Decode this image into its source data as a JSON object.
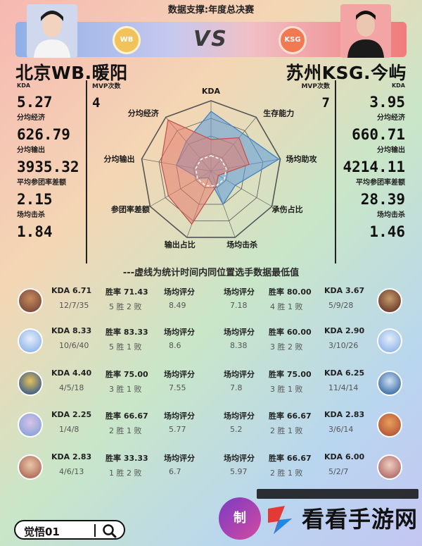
{
  "header": {
    "title": "数据支撑:年度总决赛",
    "vs": "VS"
  },
  "teams": {
    "left": {
      "name": "北京WB.暖阳",
      "logo_text": "WB",
      "color": "#e57a6e"
    },
    "right": {
      "name": "苏州KSG.今屿",
      "logo_text": "KSG",
      "color": "#5b9bdc"
    }
  },
  "left_stats": [
    {
      "label": "KDA",
      "value": "5.27"
    },
    {
      "label": "分均经济",
      "value": "626.79"
    },
    {
      "label": "分均输出",
      "value": "3935.32"
    },
    {
      "label": "平均参团率差额",
      "value": "2.15"
    },
    {
      "label": "场均击杀",
      "value": "1.84"
    }
  ],
  "right_stats": [
    {
      "label": "KDA",
      "value": "3.95"
    },
    {
      "label": "分均经济",
      "value": "660.71"
    },
    {
      "label": "分均输出",
      "value": "4214.11"
    },
    {
      "label": "平均参团率差额",
      "value": "28.39"
    },
    {
      "label": "场均击杀",
      "value": "1.46"
    }
  ],
  "mvp": {
    "left": {
      "label": "MVP次数",
      "value": "4"
    },
    "right": {
      "label": "MVP次数",
      "value": "7"
    }
  },
  "radar": {
    "axes": [
      "KDA",
      "生存能力",
      "场均助攻",
      "承伤占比",
      "场均击杀",
      "输出占比",
      "参团率差额",
      "分均输出",
      "分均经济"
    ],
    "left_values": [
      0.45,
      0.62,
      0.55,
      0.12,
      0.22,
      0.8,
      0.7,
      0.72,
      0.95
    ],
    "right_values": [
      0.85,
      0.7,
      0.98,
      0.4,
      0.5,
      0.1,
      0.2,
      0.5,
      0.55
    ],
    "min_ring": 0.22
  },
  "note": "---虚线为统计时间内同位置选手数据最低值",
  "matchups": [
    {
      "left": {
        "kda": "KDA 6.71",
        "kda_detail": "12/7/35",
        "winrate": "胜率 71.43",
        "record": "5 胜 2 败",
        "score_label": "场均评分",
        "score": "8.49"
      },
      "right": {
        "kda": "KDA 3.67",
        "kda_detail": "5/9/28",
        "winrate": "胜率 80.00",
        "record": "4 胜 1 败",
        "score_label": "场均评分",
        "score": "7.18"
      }
    },
    {
      "left": {
        "kda": "KDA 8.33",
        "kda_detail": "10/6/40",
        "winrate": "胜率 83.33",
        "record": "5 胜 1 败",
        "score_label": "场均评分",
        "score": "8.6"
      },
      "right": {
        "kda": "KDA 2.90",
        "kda_detail": "3/10/26",
        "winrate": "胜率 60.00",
        "record": "3 胜 2 败",
        "score_label": "场均评分",
        "score": "8.38"
      }
    },
    {
      "left": {
        "kda": "KDA 4.40",
        "kda_detail": "4/5/18",
        "winrate": "胜率 75.00",
        "record": "3 胜 1 败",
        "score_label": "场均评分",
        "score": "7.55"
      },
      "right": {
        "kda": "KDA 6.25",
        "kda_detail": "11/4/14",
        "winrate": "胜率 75.00",
        "record": "3 胜 1 败",
        "score_label": "场均评分",
        "score": "7.8"
      }
    },
    {
      "left": {
        "kda": "KDA 2.25",
        "kda_detail": "1/4/8",
        "winrate": "胜率 66.67",
        "record": "2 胜 1 败",
        "score_label": "场均评分",
        "score": "5.77"
      },
      "right": {
        "kda": "KDA 2.83",
        "kda_detail": "3/6/14",
        "winrate": "胜率 66.67",
        "record": "2 胜 1 败",
        "score_label": "场均评分",
        "score": "5.2"
      }
    },
    {
      "left": {
        "kda": "KDA 2.83",
        "kda_detail": "4/6/13",
        "winrate": "胜率 33.33",
        "record": "1 胜 2 败",
        "score_label": "场均评分",
        "score": "6.7"
      },
      "right": {
        "kda": "KDA 6.00",
        "kda_detail": "5/2/7",
        "winrate": "胜率 66.67",
        "record": "2 胜 1 败",
        "score_label": "场均评分",
        "score": "5.97"
      }
    }
  ],
  "search": {
    "text": "觉悟01"
  },
  "watermark": {
    "circle_text": "制",
    "text": "看看手游网"
  }
}
